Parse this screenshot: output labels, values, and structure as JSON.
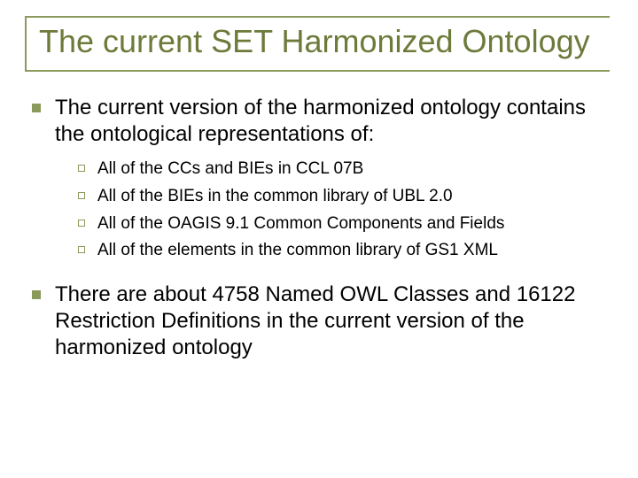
{
  "title": "The current SET Harmonized Ontology",
  "colors": {
    "accent": "#8a9a5b",
    "title_text": "#6c7a3a",
    "body_text": "#000000",
    "background": "#ffffff"
  },
  "typography": {
    "title_fontsize": 36,
    "l1_fontsize": 24,
    "l2_fontsize": 19,
    "font_family": "Arial"
  },
  "bullets": [
    {
      "text": "The current version of the harmonized ontology contains the ontological representations of:",
      "sub": [
        "All of the CCs and BIEs in CCL 07B",
        "All of the BIEs in the common library of UBL 2.0",
        "All of the OAGIS 9.1 Common Components and Fields",
        "All of the elements in the common library of GS1 XML"
      ]
    },
    {
      "text": "There are about 4758 Named OWL Classes and 16122 Restriction Definitions in the current version of the harmonized ontology",
      "sub": []
    }
  ]
}
